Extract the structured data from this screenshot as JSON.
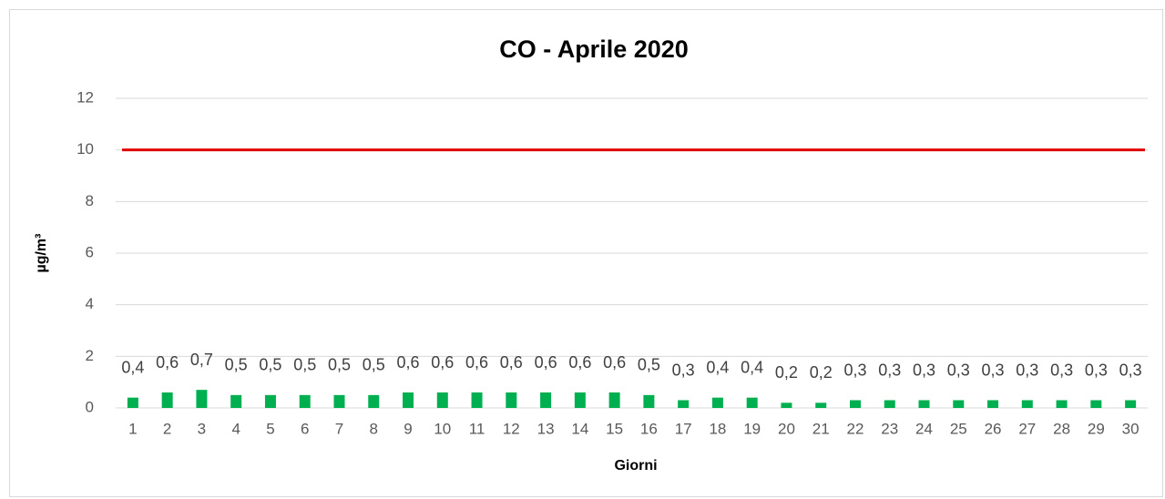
{
  "chart_data": {
    "type": "bar",
    "title": "CO - Aprile 2020",
    "x_label": "Giorni",
    "y_label": "µg/m³",
    "categories": [
      "1",
      "2",
      "3",
      "4",
      "5",
      "6",
      "7",
      "8",
      "9",
      "10",
      "11",
      "12",
      "13",
      "14",
      "15",
      "16",
      "17",
      "18",
      "19",
      "20",
      "21",
      "22",
      "23",
      "24",
      "25",
      "26",
      "27",
      "28",
      "29",
      "30"
    ],
    "values": [
      0.4,
      0.6,
      0.7,
      0.5,
      0.5,
      0.5,
      0.5,
      0.5,
      0.6,
      0.6,
      0.6,
      0.6,
      0.6,
      0.6,
      0.6,
      0.5,
      0.3,
      0.4,
      0.4,
      0.2,
      0.2,
      0.3,
      0.3,
      0.3,
      0.3,
      0.3,
      0.3,
      0.3,
      0.3,
      0.3
    ],
    "value_labels": [
      "0,4",
      "0,6",
      "0,7",
      "0,5",
      "0,5",
      "0,5",
      "0,5",
      "0,5",
      "0,6",
      "0,6",
      "0,6",
      "0,6",
      "0,6",
      "0,6",
      "0,6",
      "0,5",
      "0,3",
      "0,4",
      "0,4",
      "0,2",
      "0,2",
      "0,3",
      "0,3",
      "0,3",
      "0,3",
      "0,3",
      "0,3",
      "0,3",
      "0,3",
      "0,3"
    ],
    "color": "#00b050",
    "reference_line": {
      "value": 10,
      "color": "#e00000"
    },
    "ylim": [
      0,
      12
    ],
    "yticks": [
      0,
      2,
      4,
      6,
      8,
      10,
      12
    ],
    "grid": true
  }
}
